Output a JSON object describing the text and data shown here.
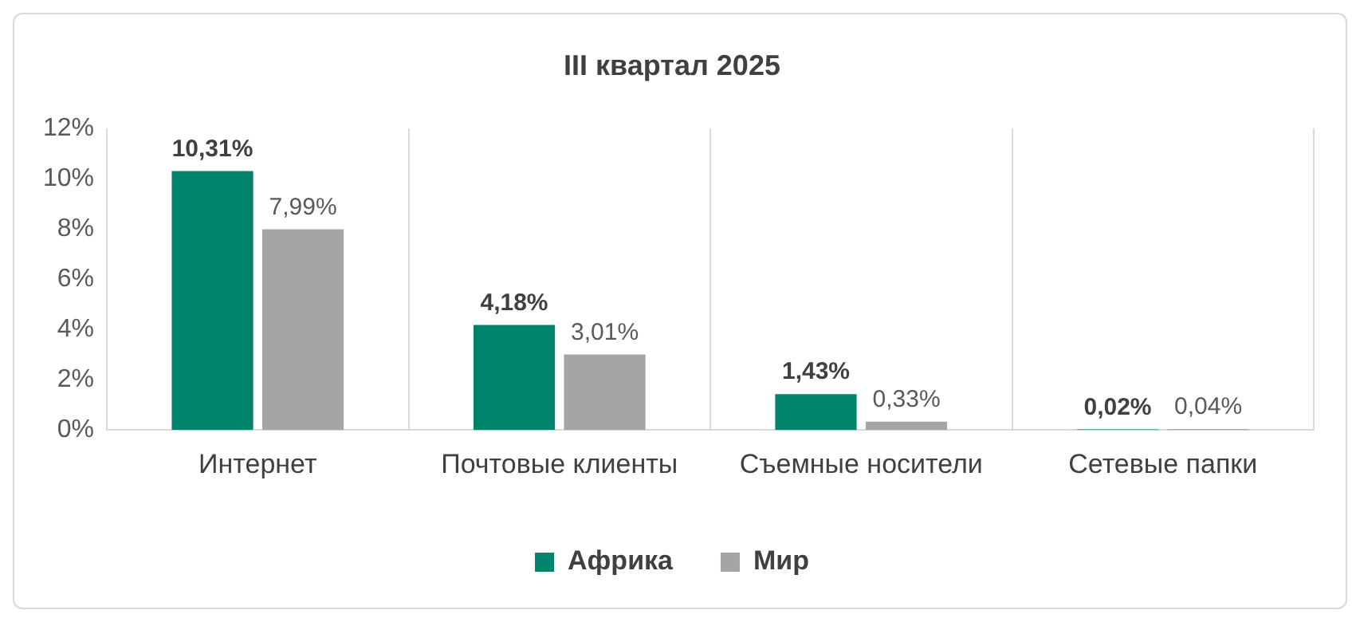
{
  "chart_data": {
    "type": "bar",
    "title": "III квартал 2025",
    "categories": [
      "Интернет",
      "Почтовые клиенты",
      "Съемные носители",
      "Сетевые папки"
    ],
    "series": [
      {
        "name": "Африка",
        "color": "#00846c",
        "values": [
          10.31,
          4.18,
          1.43,
          0.02
        ],
        "value_labels": [
          "10,31%",
          "4,18%",
          "1,43%",
          "0,02%"
        ]
      },
      {
        "name": "Мир",
        "color": "#a5a5a5",
        "values": [
          7.99,
          3.01,
          0.33,
          0.04
        ],
        "value_labels": [
          "7,99%",
          "3,01%",
          "0,33%",
          "0,04%"
        ]
      }
    ],
    "ylim": [
      0,
      12
    ],
    "yticks": [
      {
        "value": 0,
        "label": "0%"
      },
      {
        "value": 2,
        "label": "2%"
      },
      {
        "value": 4,
        "label": "4%"
      },
      {
        "value": 6,
        "label": "6%"
      },
      {
        "value": 8,
        "label": "8%"
      },
      {
        "value": 10,
        "label": "10%"
      },
      {
        "value": 12,
        "label": "12%"
      }
    ],
    "grid": "x",
    "legend": "bottom"
  }
}
